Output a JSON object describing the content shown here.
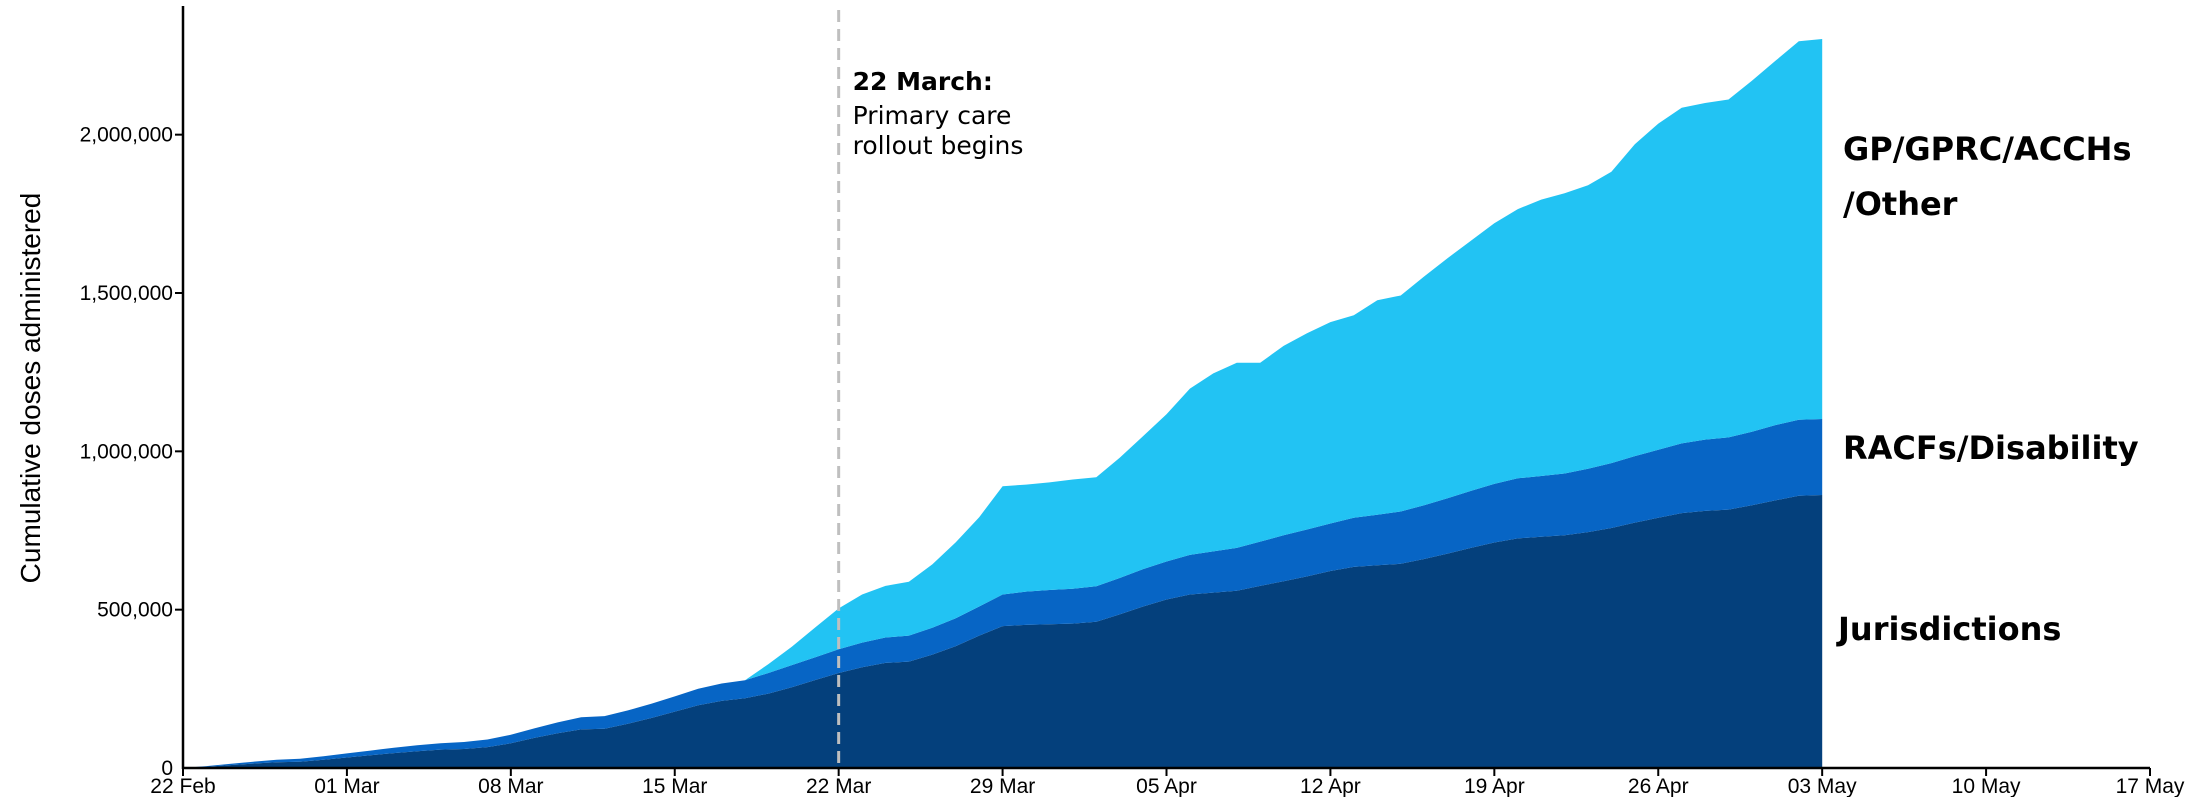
{
  "chart_data": {
    "type": "area",
    "stacked": true,
    "title": "",
    "ylabel": "Cumulative doses administered",
    "xlabel": "",
    "x_ticks": [
      "22 Feb",
      "01 Mar",
      "08 Mar",
      "15 Mar",
      "22 Mar",
      "29 Mar",
      "05 Apr",
      "12 Apr",
      "19 Apr",
      "26 Apr",
      "03 May",
      "10 May",
      "17 May"
    ],
    "y_ticks": [
      0,
      500000,
      1000000,
      1500000,
      2000000
    ],
    "y_tick_labels": [
      "0",
      "500,000",
      "1,000,000",
      "1,500,000",
      "2,000,000"
    ],
    "ylim": [
      0,
      2400000
    ],
    "x_range_days": [
      0,
      84
    ],
    "grid": false,
    "legend": "labels at right end of areas",
    "x": [
      0,
      1,
      2,
      3,
      4,
      5,
      6,
      7,
      8,
      9,
      10,
      11,
      12,
      13,
      14,
      15,
      16,
      17,
      18,
      19,
      20,
      21,
      22,
      23,
      24,
      25,
      26,
      27,
      28,
      29,
      30,
      31,
      32,
      33,
      34,
      35,
      36,
      37,
      38,
      39,
      40,
      41,
      42,
      43,
      44,
      45,
      46,
      47,
      48,
      49,
      50,
      51,
      52,
      53,
      54,
      55,
      56,
      57,
      58,
      59,
      60,
      61,
      62,
      63,
      64,
      65,
      66,
      67,
      68,
      69,
      70
    ],
    "series": [
      {
        "name": "Jurisdictions",
        "color": "#04407c",
        "values": [
          0,
          4000,
          9000,
          14000,
          18000,
          20000,
          26000,
          33000,
          40000,
          47000,
          53000,
          58000,
          60000,
          66000,
          78000,
          95000,
          110000,
          122000,
          124000,
          140000,
          158000,
          178000,
          198000,
          212000,
          220000,
          235000,
          255000,
          278000,
          300000,
          318000,
          332000,
          336000,
          358000,
          385000,
          418000,
          448000,
          452000,
          454000,
          456000,
          462000,
          485000,
          510000,
          532000,
          548000,
          554000,
          560000,
          575000,
          590000,
          605000,
          622000,
          635000,
          640000,
          645000,
          660000,
          677000,
          695000,
          712000,
          725000,
          730000,
          735000,
          745000,
          758000,
          775000,
          790000,
          805000,
          812000,
          816000,
          830000,
          845000,
          860000,
          862000
        ]
      },
      {
        "name": "RACFs/Disability",
        "color": "#0765c5",
        "values": [
          0,
          2000,
          4000,
          6000,
          8000,
          9000,
          11000,
          13000,
          15000,
          17000,
          19000,
          20000,
          22000,
          24000,
          27000,
          30000,
          34000,
          38000,
          40000,
          42000,
          45000,
          48000,
          52000,
          55000,
          57000,
          65000,
          70000,
          72000,
          75000,
          78000,
          80000,
          82000,
          85000,
          88000,
          92000,
          100000,
          105000,
          108000,
          110000,
          112000,
          115000,
          118000,
          120000,
          125000,
          130000,
          135000,
          140000,
          145000,
          148000,
          150000,
          155000,
          160000,
          165000,
          170000,
          175000,
          180000,
          185000,
          190000,
          192000,
          195000,
          200000,
          205000,
          210000,
          215000,
          220000,
          225000,
          228000,
          232000,
          238000,
          240000,
          240000
        ]
      },
      {
        "name": "GP/GPRC/ACCHs /Other",
        "color": "#22c3f3",
        "values": [
          0,
          0,
          0,
          0,
          0,
          0,
          0,
          0,
          0,
          0,
          0,
          0,
          0,
          0,
          0,
          0,
          0,
          0,
          0,
          0,
          0,
          0,
          0,
          0,
          0,
          28000,
          58000,
          94000,
          129000,
          152000,
          163000,
          170000,
          200000,
          240000,
          282000,
          342000,
          338000,
          340000,
          345000,
          344000,
          380000,
          420000,
          465000,
          525000,
          562000,
          585000,
          565000,
          598000,
          620000,
          636000,
          640000,
          677000,
          682000,
          722000,
          758000,
          790000,
          823000,
          850000,
          873000,
          885000,
          895000,
          920000,
          985000,
          1030000,
          1060000,
          1063000,
          1067000,
          1108000,
          1150000,
          1195000,
          1200000
        ]
      }
    ],
    "annotations": [
      {
        "x": 28,
        "label_bold": "22 March:",
        "label_lines": [
          "Primary care",
          "rollout begins"
        ],
        "style": "dashed vertical line"
      }
    ]
  }
}
